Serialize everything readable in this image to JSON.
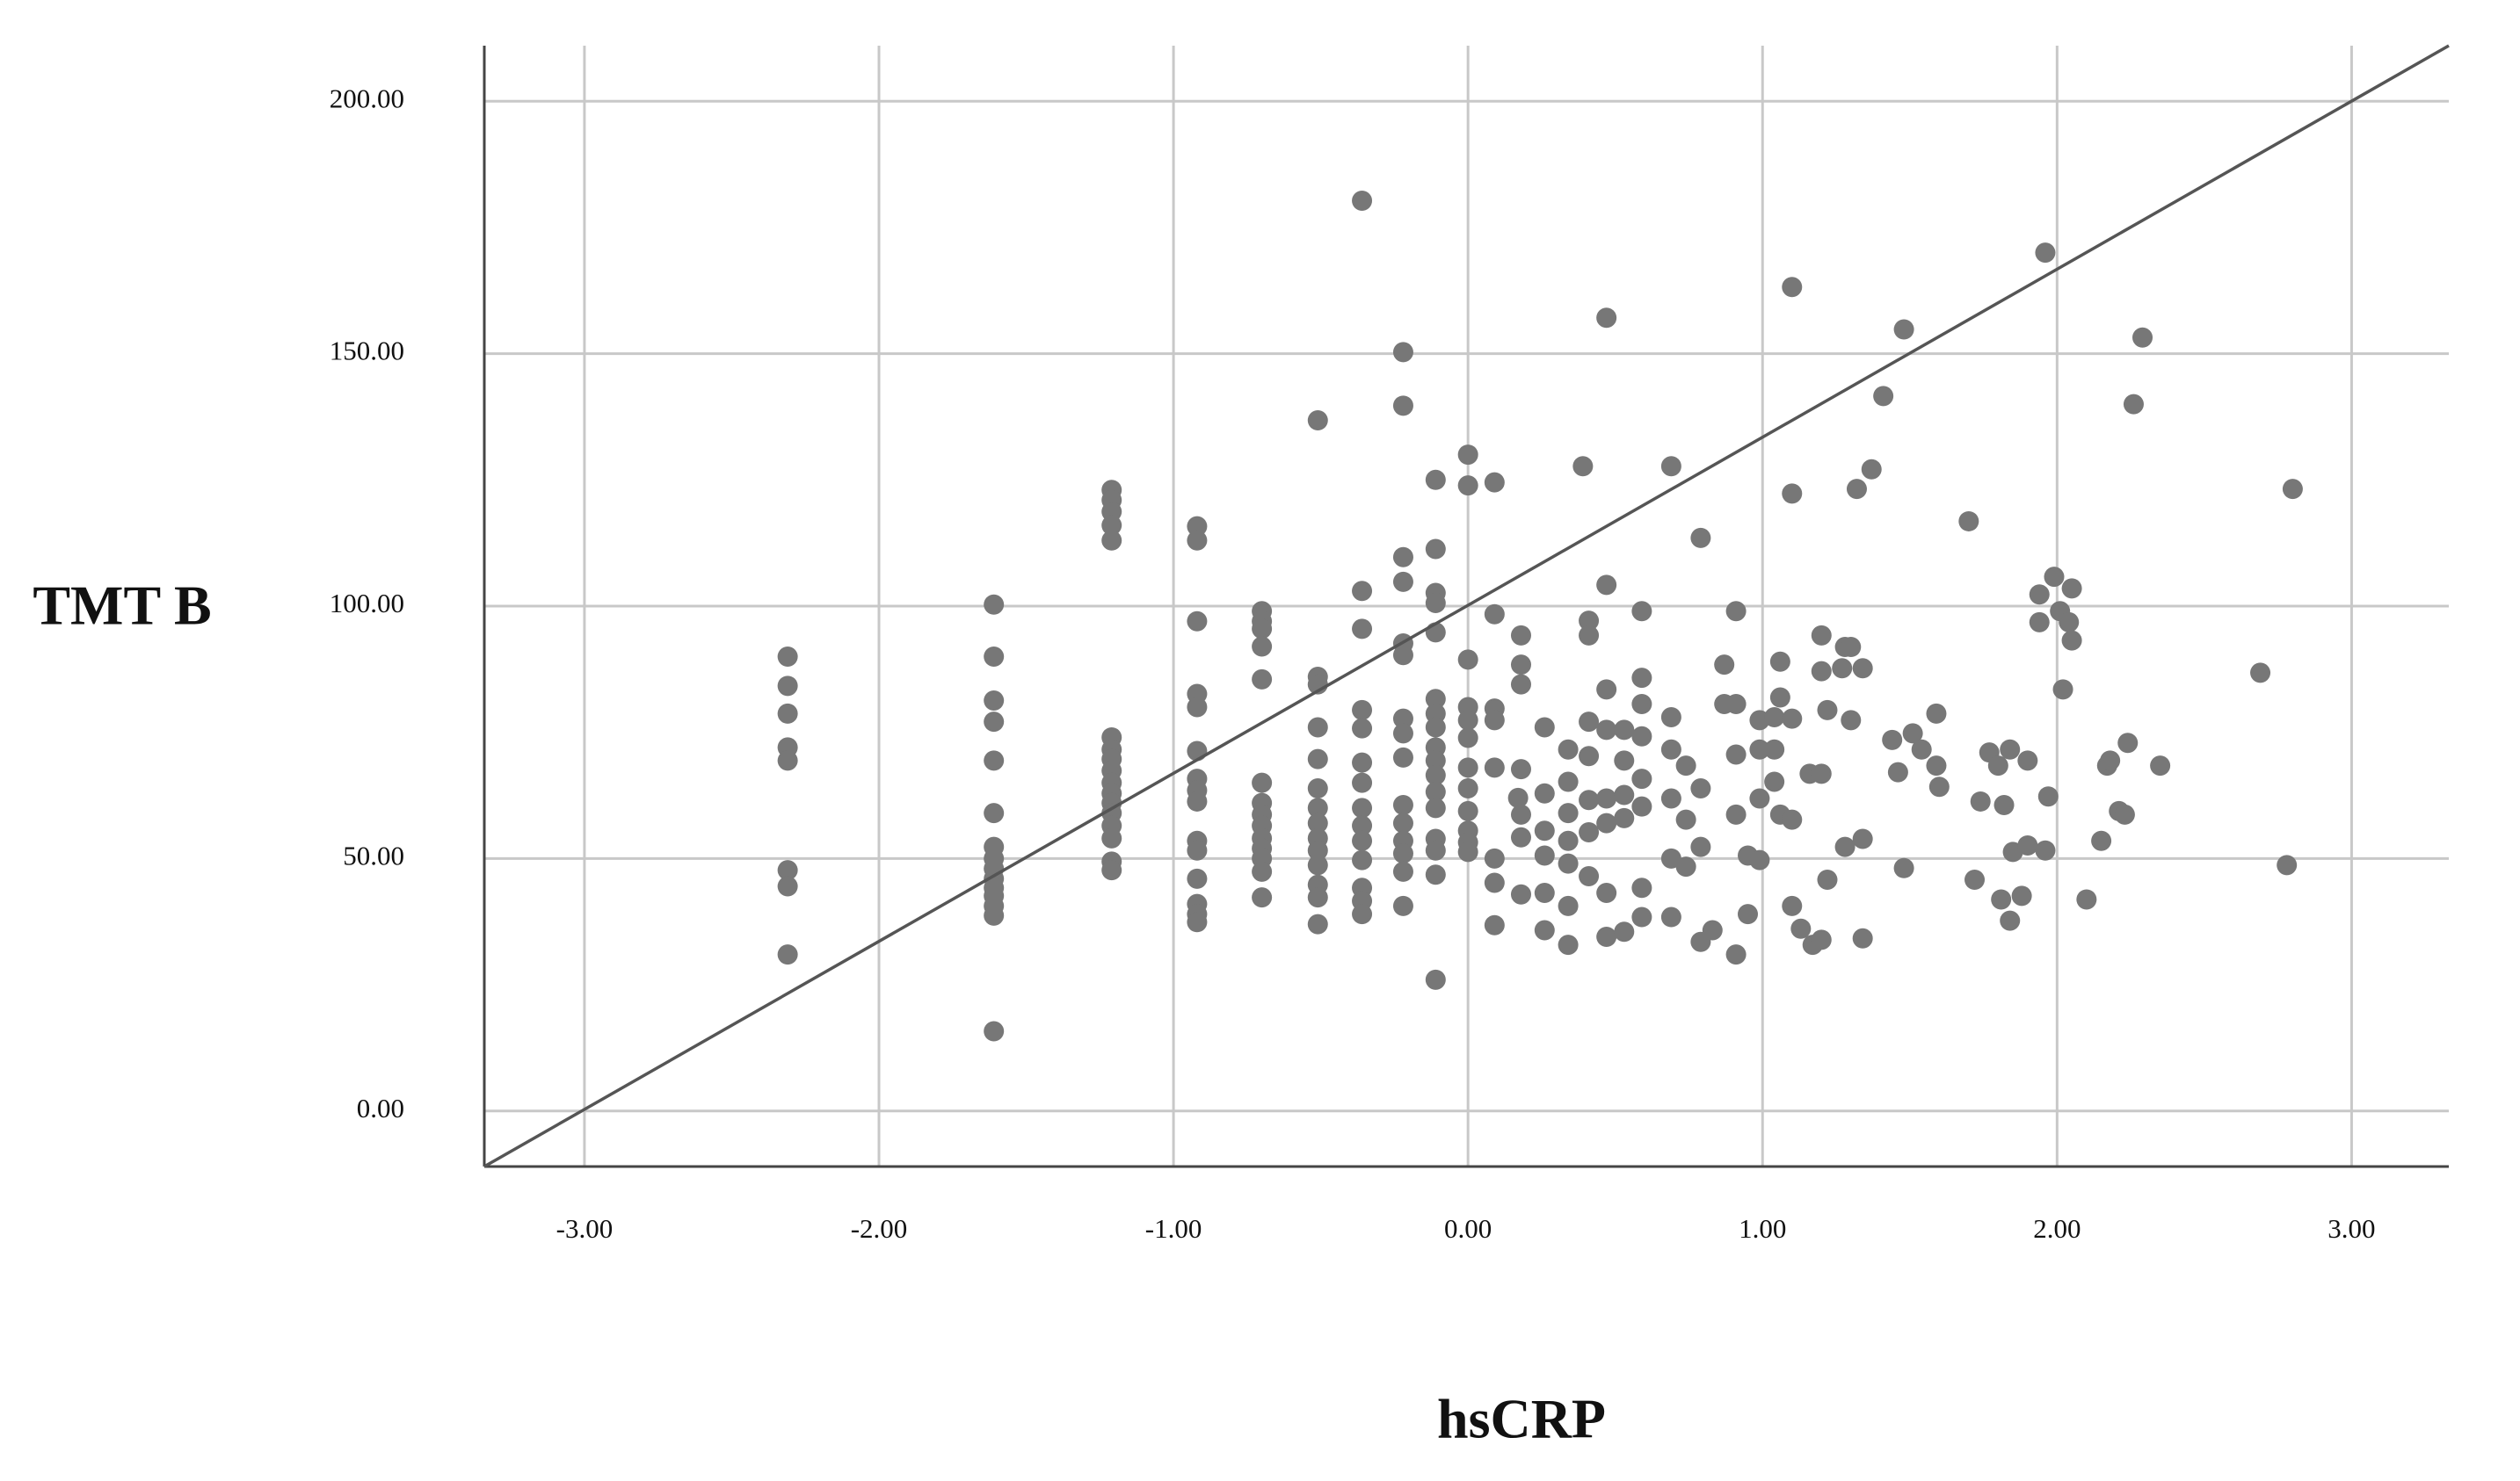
{
  "chart_data": {
    "type": "scatter",
    "xlabel": "hsCRP",
    "ylabel": "TMT B",
    "xlim": [
      -3.34,
      3.33
    ],
    "ylim": [
      -11,
      211
    ],
    "xticks": [
      {
        "value": -3,
        "label": "-3.00"
      },
      {
        "value": -2,
        "label": "-2.00"
      },
      {
        "value": -1,
        "label": "-1.00"
      },
      {
        "value": 0,
        "label": "0.00"
      },
      {
        "value": 1,
        "label": "1.00"
      },
      {
        "value": 2,
        "label": "2.00"
      },
      {
        "value": 3,
        "label": "3.00"
      }
    ],
    "yticks": [
      {
        "value": 0,
        "label": "0.00"
      },
      {
        "value": 50,
        "label": "50.00"
      },
      {
        "value": 100,
        "label": "100.00"
      },
      {
        "value": 150,
        "label": "150.00"
      },
      {
        "value": 200,
        "label": "200.00"
      }
    ],
    "grid": true,
    "series": [
      {
        "color": "#777777",
        "x": [
          -2.31,
          -2.31,
          -2.31,
          -2.31,
          -2.31,
          -2.31,
          -2.31,
          -2.31,
          -1.61,
          -1.61,
          -1.61,
          -1.61,
          -1.61,
          -1.61,
          -1.61,
          -1.61,
          -1.61,
          -1.61,
          -1.61,
          -1.61,
          -1.61,
          -1.61,
          -1.61,
          -1.21,
          -1.21,
          -1.21,
          -1.21,
          -1.21,
          -1.21,
          -1.21,
          -1.21,
          -1.21,
          -1.21,
          -1.21,
          -1.21,
          -1.21,
          -1.21,
          -1.21,
          -1.21,
          -1.21,
          -0.92,
          -0.92,
          -0.92,
          -0.92,
          -0.92,
          -0.92,
          -0.92,
          -0.92,
          -0.92,
          -0.92,
          -0.92,
          -0.92,
          -0.92,
          -0.92,
          -0.92,
          -0.7,
          -0.7,
          -0.7,
          -0.7,
          -0.7,
          -0.7,
          -0.7,
          -0.7,
          -0.7,
          -0.7,
          -0.7,
          -0.7,
          -0.7,
          -0.7,
          -0.51,
          -0.51,
          -0.51,
          -0.51,
          -0.51,
          -0.51,
          -0.51,
          -0.51,
          -0.51,
          -0.51,
          -0.51,
          -0.51,
          -0.51,
          -0.51,
          -0.36,
          -0.36,
          -0.36,
          -0.36,
          -0.36,
          -0.36,
          -0.36,
          -0.36,
          -0.36,
          -0.36,
          -0.36,
          -0.36,
          -0.36,
          -0.36,
          -0.22,
          -0.22,
          -0.22,
          -0.22,
          -0.22,
          -0.22,
          -0.22,
          -0.22,
          -0.22,
          -0.22,
          -0.22,
          -0.22,
          -0.22,
          -0.22,
          -0.22,
          -0.11,
          -0.11,
          -0.11,
          -0.11,
          -0.11,
          -0.11,
          -0.11,
          -0.11,
          -0.11,
          -0.11,
          -0.11,
          -0.11,
          -0.11,
          -0.11,
          -0.11,
          -0.11,
          -0.11,
          0,
          0,
          0,
          0,
          0,
          0,
          0,
          0,
          0,
          0,
          0,
          0,
          0.09,
          0.09,
          0.09,
          0.09,
          0.09,
          0.09,
          0.09,
          0.09,
          0.17,
          0.18,
          0.18,
          0.18,
          0.18,
          0.18,
          0.18,
          0.18,
          0.26,
          0.26,
          0.26,
          0.26,
          0.26,
          0.26,
          0.34,
          0.34,
          0.34,
          0.34,
          0.34,
          0.34,
          0.34,
          0.39,
          0.41,
          0.41,
          0.41,
          0.41,
          0.41,
          0.41,
          0.41,
          0.47,
          0.47,
          0.47,
          0.47,
          0.47,
          0.47,
          0.47,
          0.47,
          0.53,
          0.53,
          0.53,
          0.53,
          0.53,
          0.59,
          0.59,
          0.59,
          0.59,
          0.59,
          0.59,
          0.59,
          0.59,
          0.69,
          0.69,
          0.69,
          0.69,
          0.69,
          0.69,
          0.74,
          0.74,
          0.74,
          0.79,
          0.79,
          0.79,
          0.79,
          0.83,
          0.87,
          0.87,
          0.91,
          0.91,
          0.91,
          0.91,
          0.91,
          0.95,
          0.95,
          0.99,
          0.99,
          0.99,
          0.99,
          1.04,
          1.04,
          1.04,
          1.06,
          1.06,
          1.06,
          1.1,
          1.1,
          1.1,
          1.1,
          1.1,
          1.13,
          1.16,
          1.17,
          1.2,
          1.2,
          1.2,
          1.2,
          1.22,
          1.22,
          1.27,
          1.28,
          1.28,
          1.3,
          1.3,
          1.32,
          1.34,
          1.34,
          1.34,
          1.37,
          1.41,
          1.44,
          1.46,
          1.48,
          1.48,
          1.51,
          1.54,
          1.59,
          1.59,
          1.6,
          1.7,
          1.72,
          1.74,
          1.77,
          1.8,
          1.81,
          1.82,
          1.84,
          1.84,
          1.85,
          1.88,
          1.9,
          1.9,
          1.94,
          1.94,
          1.96,
          1.96,
          1.97,
          1.99,
          2.01,
          2.02,
          2.04,
          2.05,
          2.05,
          2.1,
          2.15,
          2.17,
          2.18,
          2.21,
          2.23,
          2.24,
          2.26,
          2.29,
          2.35,
          2.69,
          2.78,
          2.8
        ],
        "y": [
          90,
          84.2,
          78.7,
          72,
          69.4,
          47.7,
          44.5,
          31,
          100.3,
          90,
          81.3,
          77.1,
          69.4,
          59,
          52.3,
          50,
          48,
          46,
          44.2,
          42.6,
          40.6,
          38.7,
          15.8,
          123,
          121,
          118.7,
          116,
          113,
          74,
          71.6,
          69.7,
          67.4,
          65,
          62.9,
          61,
          59,
          56.5,
          54,
          49.4,
          47.7,
          115.8,
          113,
          97,
          82.6,
          80,
          71.3,
          65.8,
          63.5,
          61.3,
          53.5,
          51.6,
          46,
          41,
          39,
          37.4,
          99,
          97,
          95.5,
          92,
          85.5,
          65,
          61,
          58.7,
          56.5,
          54,
          52,
          50,
          47.4,
          42.3,
          136.8,
          86,
          84.5,
          76,
          69.7,
          63.9,
          60,
          57,
          54,
          51.6,
          48.7,
          44.8,
          42.3,
          37,
          180.3,
          103,
          95.5,
          79.4,
          75.8,
          69,
          65,
          60,
          56.5,
          53.5,
          49.7,
          44.2,
          41.6,
          39,
          150.3,
          139.7,
          109.7,
          104.8,
          92.6,
          90.3,
          77.7,
          74.8,
          70,
          60.6,
          57,
          53.5,
          51,
          47.4,
          40.6,
          125,
          111.3,
          102.6,
          100.6,
          94.8,
          81.6,
          78.7,
          76,
          72,
          69.4,
          66.5,
          63.2,
          60,
          53.9,
          51.6,
          46.8,
          26,
          130,
          123.9,
          89.4,
          80,
          77.4,
          73.9,
          68,
          63.9,
          59.4,
          55.5,
          53.2,
          51.3,
          124.5,
          98.4,
          79.7,
          77.4,
          68,
          50,
          45.2,
          36.8,
          62,
          94.2,
          88.4,
          84.5,
          67.7,
          58.7,
          54.2,
          42.9,
          76,
          62.9,
          55.5,
          50.6,
          43.2,
          35.8,
          71.6,
          65.2,
          59,
          53.5,
          49,
          40.6,
          32.9,
          127.7,
          97.1,
          94.2,
          77.1,
          70.3,
          61.6,
          55.2,
          46.5,
          157.1,
          104.2,
          83.5,
          75.5,
          61.9,
          57,
          43.2,
          34.5,
          75.5,
          69.4,
          62.6,
          58,
          35.5,
          99,
          85.8,
          80.6,
          74.2,
          65.8,
          60.3,
          44.2,
          38.4,
          127.7,
          78,
          71.6,
          61.9,
          50,
          38.4,
          68.4,
          57.7,
          48.4,
          113.5,
          63.9,
          52.3,
          33.5,
          35.8,
          88.4,
          80.6,
          99,
          80.6,
          70.6,
          58.7,
          31,
          50.6,
          39,
          77.4,
          71.6,
          61.9,
          49.7,
          78,
          71.6,
          65.2,
          89,
          81.9,
          58.7,
          163.2,
          122.3,
          77.7,
          57.7,
          40.6,
          36.1,
          66.8,
          32.9,
          66.8,
          33.9,
          94.2,
          87.1,
          79.4,
          45.8,
          87.7,
          91.9,
          52.3,
          77.4,
          91.9,
          123.2,
          87.7,
          53.9,
          34.2,
          127.1,
          141.6,
          73.5,
          67.1,
          154.8,
          48.1,
          74.8,
          71.6,
          78.7,
          68.4,
          64.2,
          116.8,
          45.8,
          61.3,
          71,
          68.4,
          41.9,
          60.6,
          37.7,
          71.6,
          51.3,
          42.6,
          69.4,
          52.6,
          96.8,
          102.3,
          170,
          51.6,
          62.3,
          105.8,
          99,
          83.5,
          96.8,
          93.2,
          103.5,
          41.9,
          53.5,
          68.4,
          69.4,
          59.4,
          58.7,
          72.9,
          140,
          153.2,
          68.4,
          86.8,
          48.7,
          123.2
        ]
      }
    ],
    "fit_line": {
      "color": "#555555",
      "x": [
        -3.34,
        3.33
      ],
      "y": [
        -11,
        211
      ]
    }
  }
}
